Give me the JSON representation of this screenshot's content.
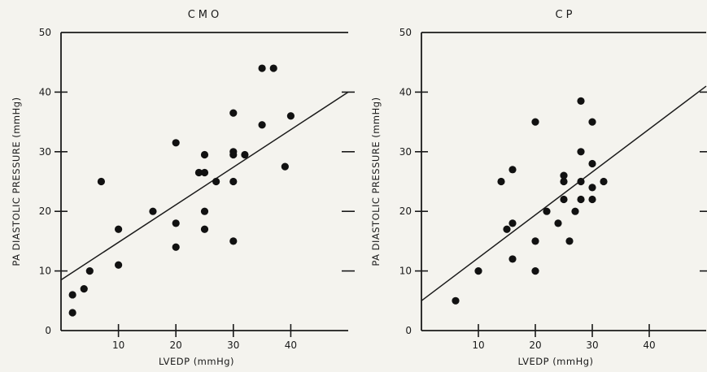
{
  "chart_data": [
    {
      "type": "scatter",
      "title": "CMO",
      "xlabel": "LVEDP (mmHg)",
      "ylabel": "PA DIASTOLIC PRESSURE (mmHg)",
      "xlim": [
        0,
        50
      ],
      "ylim": [
        0,
        50
      ],
      "xticks": [
        10,
        20,
        30,
        40
      ],
      "yticks": [
        0,
        10,
        20,
        30,
        40,
        50
      ],
      "grid": false,
      "series": [
        {
          "points": [
            [
              2,
              6
            ],
            [
              2,
              3
            ],
            [
              4,
              7
            ],
            [
              5,
              10
            ],
            [
              7,
              25
            ],
            [
              10,
              17
            ],
            [
              10,
              11
            ],
            [
              16,
              20
            ],
            [
              20,
              31.5
            ],
            [
              20,
              18
            ],
            [
              20,
              14
            ],
            [
              24,
              26.5
            ],
            [
              25,
              29.5
            ],
            [
              25,
              26.5
            ],
            [
              25,
              20
            ],
            [
              25,
              17
            ],
            [
              27,
              25
            ],
            [
              30,
              36.5
            ],
            [
              30,
              30
            ],
            [
              30,
              29.5
            ],
            [
              30,
              25
            ],
            [
              30,
              15
            ],
            [
              32,
              29.5
            ],
            [
              35,
              44
            ],
            [
              37,
              44
            ],
            [
              35,
              34.5
            ],
            [
              39,
              27.5
            ],
            [
              40,
              36
            ]
          ]
        }
      ],
      "regression_line": {
        "x": [
          0,
          50
        ],
        "y": [
          8.5,
          40
        ]
      }
    },
    {
      "type": "scatter",
      "title": "CP",
      "xlabel": "LVEDP (mmHg)",
      "ylabel": "PA DIASTOLIC PRESSURE (mmHg)",
      "xlim": [
        0,
        50
      ],
      "ylim": [
        0,
        50
      ],
      "xticks": [
        10,
        20,
        30,
        40
      ],
      "yticks": [
        0,
        10,
        20,
        30,
        40,
        50
      ],
      "grid": false,
      "series": [
        {
          "points": [
            [
              6,
              5
            ],
            [
              10,
              10
            ],
            [
              14,
              25
            ],
            [
              15,
              17
            ],
            [
              16,
              18
            ],
            [
              16,
              27
            ],
            [
              16,
              12
            ],
            [
              20,
              35
            ],
            [
              20,
              15
            ],
            [
              20,
              10
            ],
            [
              22,
              20
            ],
            [
              24,
              18
            ],
            [
              25,
              26
            ],
            [
              25,
              25
            ],
            [
              25,
              22
            ],
            [
              26,
              15
            ],
            [
              27,
              20
            ],
            [
              28,
              38.5
            ],
            [
              28,
              30
            ],
            [
              28,
              25
            ],
            [
              28,
              22
            ],
            [
              30,
              35
            ],
            [
              30,
              28
            ],
            [
              30,
              24
            ],
            [
              30,
              22
            ],
            [
              32,
              25
            ]
          ]
        }
      ],
      "regression_line": {
        "x": [
          0,
          50
        ],
        "y": [
          5,
          41
        ]
      }
    }
  ]
}
